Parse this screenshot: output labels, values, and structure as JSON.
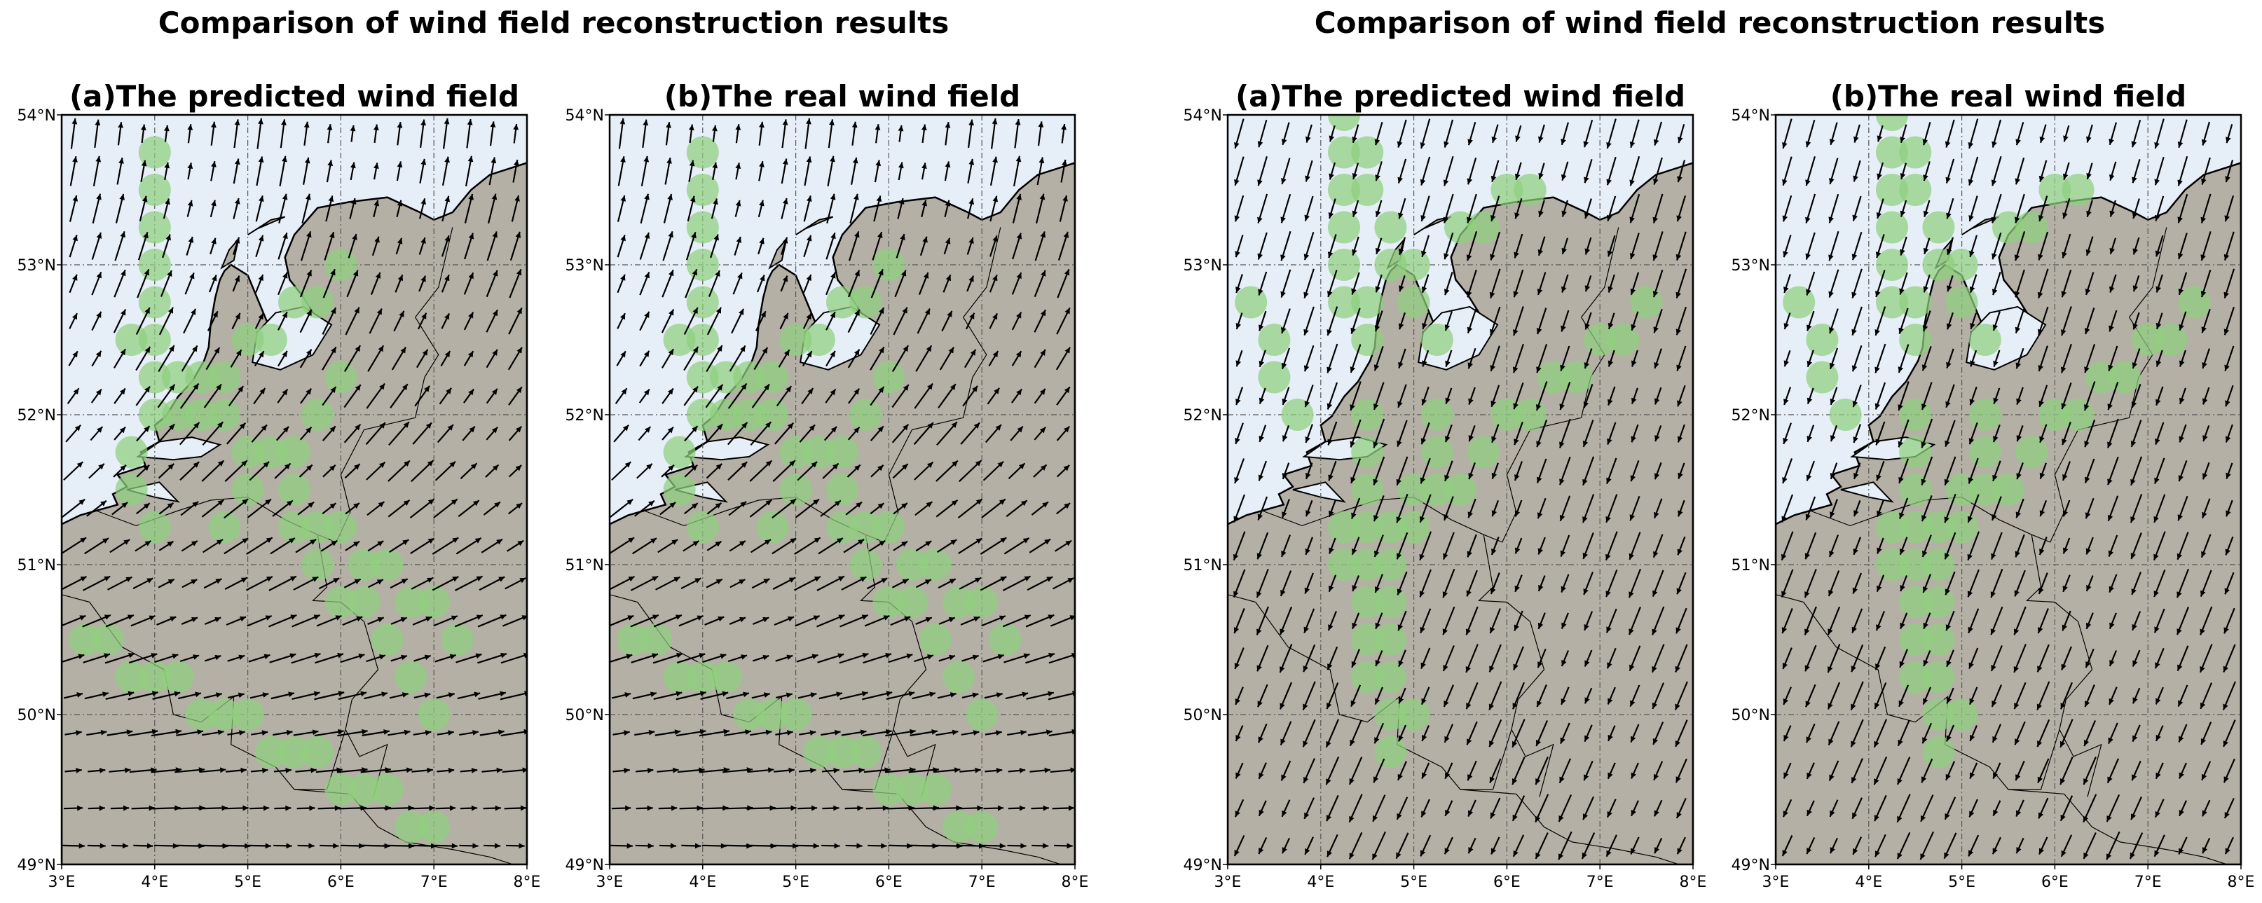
{
  "chart_data": [
    {
      "type": "quiver-map",
      "suptitle": "Comparison of wind field reconstruction results",
      "title": "(a)The predicted wind field",
      "xlim": [
        3,
        8
      ],
      "ylim": [
        49,
        54
      ],
      "xticks": [
        3,
        4,
        5,
        6,
        7,
        8
      ],
      "yticks": [
        49,
        50,
        51,
        52,
        53,
        54
      ],
      "xtick_labels": [
        "3°E",
        "4°E",
        "5°E",
        "6°E",
        "7°E",
        "8°E"
      ],
      "ytick_labels": [
        "49°N",
        "50°N",
        "51°N",
        "52°N",
        "53°N",
        "54°N"
      ],
      "wind": {
        "dir_north": [
          0.1,
          1.0
        ],
        "dir_south": [
          1.0,
          -0.05
        ],
        "grid_step_deg": 0.25
      },
      "station_markers": [
        [
          4,
          53.75
        ],
        [
          4,
          53.5
        ],
        [
          4,
          53.25
        ],
        [
          4,
          53.0
        ],
        [
          4,
          52.75
        ],
        [
          3.75,
          52.5
        ],
        [
          4,
          52.5
        ],
        [
          4,
          52.25
        ],
        [
          4.25,
          52.25
        ],
        [
          4.5,
          52.25
        ],
        [
          4.75,
          52.25
        ],
        [
          4,
          52.0
        ],
        [
          4.25,
          52.0
        ],
        [
          4.5,
          52.0
        ],
        [
          4.75,
          52.0
        ],
        [
          6,
          53.0
        ],
        [
          5.5,
          52.75
        ],
        [
          5.75,
          52.75
        ],
        [
          5,
          52.5
        ],
        [
          5.25,
          52.5
        ],
        [
          6,
          52.25
        ],
        [
          5.75,
          52.0
        ],
        [
          3.75,
          51.75
        ],
        [
          5,
          51.75
        ],
        [
          5.25,
          51.75
        ],
        [
          5.5,
          51.75
        ],
        [
          3.75,
          51.5
        ],
        [
          5,
          51.5
        ],
        [
          5.5,
          51.5
        ],
        [
          4,
          51.25
        ],
        [
          4.75,
          51.25
        ],
        [
          5.5,
          51.25
        ],
        [
          5.75,
          51.25
        ],
        [
          6,
          51.25
        ],
        [
          5.75,
          51.0
        ],
        [
          6.25,
          51.0
        ],
        [
          6.5,
          51.0
        ],
        [
          6,
          50.75
        ],
        [
          6.25,
          50.75
        ],
        [
          6.75,
          50.75
        ],
        [
          7,
          50.75
        ],
        [
          6.5,
          50.5
        ],
        [
          7.25,
          50.5
        ],
        [
          3.25,
          50.5
        ],
        [
          3.5,
          50.5
        ],
        [
          3.75,
          50.25
        ],
        [
          4,
          50.25
        ],
        [
          4.25,
          50.25
        ],
        [
          6.75,
          50.25
        ],
        [
          4.5,
          50.0
        ],
        [
          4.75,
          50.0
        ],
        [
          5,
          50.0
        ],
        [
          7,
          50.0
        ],
        [
          5.25,
          49.75
        ],
        [
          5.5,
          49.75
        ],
        [
          5.75,
          49.75
        ],
        [
          6,
          49.5
        ],
        [
          6.25,
          49.5
        ],
        [
          6.5,
          49.5
        ],
        [
          6.75,
          49.25
        ],
        [
          7,
          49.25
        ]
      ]
    },
    {
      "type": "quiver-map",
      "title": "(b)The real wind field",
      "xlim": [
        3,
        8
      ],
      "ylim": [
        49,
        54
      ],
      "xticks": [
        3,
        4,
        5,
        6,
        7,
        8
      ],
      "yticks": [
        49,
        50,
        51,
        52,
        53,
        54
      ],
      "xtick_labels": [
        "3°E",
        "4°E",
        "5°E",
        "6°E",
        "7°E",
        "8°E"
      ],
      "ytick_labels": [
        "49°N",
        "50°N",
        "51°N",
        "52°N",
        "53°N",
        "54°N"
      ],
      "wind": {
        "dir_north": [
          0.1,
          1.0
        ],
        "dir_south": [
          1.0,
          -0.05
        ],
        "grid_step_deg": 0.25
      },
      "station_markers": [
        [
          4,
          53.75
        ],
        [
          4,
          53.5
        ],
        [
          4,
          53.25
        ],
        [
          4,
          53.0
        ],
        [
          4,
          52.75
        ],
        [
          3.75,
          52.5
        ],
        [
          4,
          52.5
        ],
        [
          4,
          52.25
        ],
        [
          4.25,
          52.25
        ],
        [
          4.5,
          52.25
        ],
        [
          4.75,
          52.25
        ],
        [
          4,
          52.0
        ],
        [
          4.25,
          52.0
        ],
        [
          4.5,
          52.0
        ],
        [
          4.75,
          52.0
        ],
        [
          6,
          53.0
        ],
        [
          5.5,
          52.75
        ],
        [
          5.75,
          52.75
        ],
        [
          5,
          52.5
        ],
        [
          5.25,
          52.5
        ],
        [
          6,
          52.25
        ],
        [
          5.75,
          52.0
        ],
        [
          3.75,
          51.75
        ],
        [
          5,
          51.75
        ],
        [
          5.25,
          51.75
        ],
        [
          5.5,
          51.75
        ],
        [
          3.75,
          51.5
        ],
        [
          5,
          51.5
        ],
        [
          5.5,
          51.5
        ],
        [
          4,
          51.25
        ],
        [
          4.75,
          51.25
        ],
        [
          5.5,
          51.25
        ],
        [
          5.75,
          51.25
        ],
        [
          6,
          51.25
        ],
        [
          5.75,
          51.0
        ],
        [
          6.25,
          51.0
        ],
        [
          6.5,
          51.0
        ],
        [
          6,
          50.75
        ],
        [
          6.25,
          50.75
        ],
        [
          6.75,
          50.75
        ],
        [
          7,
          50.75
        ],
        [
          6.5,
          50.5
        ],
        [
          7.25,
          50.5
        ],
        [
          3.25,
          50.5
        ],
        [
          3.5,
          50.5
        ],
        [
          3.75,
          50.25
        ],
        [
          4,
          50.25
        ],
        [
          4.25,
          50.25
        ],
        [
          6.75,
          50.25
        ],
        [
          4.5,
          50.0
        ],
        [
          4.75,
          50.0
        ],
        [
          5,
          50.0
        ],
        [
          7,
          50.0
        ],
        [
          5.25,
          49.75
        ],
        [
          5.5,
          49.75
        ],
        [
          5.75,
          49.75
        ],
        [
          6,
          49.5
        ],
        [
          6.25,
          49.5
        ],
        [
          6.5,
          49.5
        ],
        [
          6.75,
          49.25
        ],
        [
          7,
          49.25
        ]
      ]
    },
    {
      "type": "quiver-map",
      "suptitle": "Comparison of wind field reconstruction results",
      "title": "(a)The predicted wind field",
      "xlim": [
        3,
        8
      ],
      "ylim": [
        49,
        54
      ],
      "xticks": [
        3,
        4,
        5,
        6,
        7,
        8
      ],
      "yticks": [
        49,
        50,
        51,
        52,
        53,
        54
      ],
      "xtick_labels": [
        "3°E",
        "4°E",
        "5°E",
        "6°E",
        "7°E",
        "8°E"
      ],
      "ytick_labels": [
        "49°N",
        "50°N",
        "51°N",
        "52°N",
        "53°N",
        "54°N"
      ],
      "wind": {
        "dir_north": [
          -0.28,
          -1.0
        ],
        "dir_south": [
          -0.42,
          -0.9
        ],
        "grid_step_deg": 0.25
      },
      "station_markers": [
        [
          4.25,
          54.0
        ],
        [
          4.25,
          53.75
        ],
        [
          4.5,
          53.75
        ],
        [
          4.25,
          53.5
        ],
        [
          4.5,
          53.5
        ],
        [
          4.25,
          53.25
        ],
        [
          4.75,
          53.25
        ],
        [
          4.25,
          53.0
        ],
        [
          4.75,
          53.0
        ],
        [
          5,
          53.0
        ],
        [
          5.5,
          53.25
        ],
        [
          5.75,
          53.25
        ],
        [
          6,
          53.5
        ],
        [
          6.25,
          53.5
        ],
        [
          3.25,
          52.75
        ],
        [
          4.25,
          52.75
        ],
        [
          4.5,
          52.75
        ],
        [
          5,
          52.75
        ],
        [
          7.5,
          52.75
        ],
        [
          3.5,
          52.5
        ],
        [
          4.5,
          52.5
        ],
        [
          5.25,
          52.5
        ],
        [
          7,
          52.5
        ],
        [
          7.25,
          52.5
        ],
        [
          3.5,
          52.25
        ],
        [
          6.5,
          52.25
        ],
        [
          6.75,
          52.25
        ],
        [
          3.75,
          52.0
        ],
        [
          4.5,
          52.0
        ],
        [
          5.25,
          52.0
        ],
        [
          6,
          52.0
        ],
        [
          6.25,
          52.0
        ],
        [
          4.5,
          51.75
        ],
        [
          5.25,
          51.75
        ],
        [
          5.75,
          51.75
        ],
        [
          4.5,
          51.5
        ],
        [
          5,
          51.5
        ],
        [
          5.25,
          51.5
        ],
        [
          5.5,
          51.5
        ],
        [
          4.25,
          51.25
        ],
        [
          4.5,
          51.25
        ],
        [
          4.75,
          51.25
        ],
        [
          5,
          51.25
        ],
        [
          4.25,
          51.0
        ],
        [
          4.5,
          51.0
        ],
        [
          4.75,
          51.0
        ],
        [
          4.5,
          50.75
        ],
        [
          4.75,
          50.75
        ],
        [
          4.5,
          50.5
        ],
        [
          4.75,
          50.5
        ],
        [
          4.5,
          50.25
        ],
        [
          4.75,
          50.25
        ],
        [
          4.75,
          50.0
        ],
        [
          5,
          50.0
        ],
        [
          4.75,
          49.75
        ]
      ]
    },
    {
      "type": "quiver-map",
      "title": "(b)The real wind field",
      "xlim": [
        3,
        8
      ],
      "ylim": [
        49,
        54
      ],
      "xticks": [
        3,
        4,
        5,
        6,
        7,
        8
      ],
      "yticks": [
        49,
        50,
        51,
        52,
        53,
        54
      ],
      "xtick_labels": [
        "3°E",
        "4°E",
        "5°E",
        "6°E",
        "7°E",
        "8°E"
      ],
      "ytick_labels": [
        "49°N",
        "50°N",
        "51°N",
        "52°N",
        "53°N",
        "54°N"
      ],
      "wind": {
        "dir_north": [
          -0.28,
          -1.0
        ],
        "dir_south": [
          -0.42,
          -0.9
        ],
        "grid_step_deg": 0.25
      },
      "station_markers": [
        [
          4.25,
          54.0
        ],
        [
          4.25,
          53.75
        ],
        [
          4.5,
          53.75
        ],
        [
          4.25,
          53.5
        ],
        [
          4.5,
          53.5
        ],
        [
          4.25,
          53.25
        ],
        [
          4.75,
          53.25
        ],
        [
          4.25,
          53.0
        ],
        [
          4.75,
          53.0
        ],
        [
          5,
          53.0
        ],
        [
          5.5,
          53.25
        ],
        [
          5.75,
          53.25
        ],
        [
          6,
          53.5
        ],
        [
          6.25,
          53.5
        ],
        [
          3.25,
          52.75
        ],
        [
          4.25,
          52.75
        ],
        [
          4.5,
          52.75
        ],
        [
          5,
          52.75
        ],
        [
          7.5,
          52.75
        ],
        [
          3.5,
          52.5
        ],
        [
          4.5,
          52.5
        ],
        [
          5.25,
          52.5
        ],
        [
          7,
          52.5
        ],
        [
          7.25,
          52.5
        ],
        [
          3.5,
          52.25
        ],
        [
          6.5,
          52.25
        ],
        [
          6.75,
          52.25
        ],
        [
          3.75,
          52.0
        ],
        [
          4.5,
          52.0
        ],
        [
          5.25,
          52.0
        ],
        [
          6,
          52.0
        ],
        [
          6.25,
          52.0
        ],
        [
          4.5,
          51.75
        ],
        [
          5.25,
          51.75
        ],
        [
          5.75,
          51.75
        ],
        [
          4.5,
          51.5
        ],
        [
          5,
          51.5
        ],
        [
          5.25,
          51.5
        ],
        [
          5.5,
          51.5
        ],
        [
          4.25,
          51.25
        ],
        [
          4.5,
          51.25
        ],
        [
          4.75,
          51.25
        ],
        [
          5,
          51.25
        ],
        [
          4.25,
          51.0
        ],
        [
          4.5,
          51.0
        ],
        [
          4.75,
          51.0
        ],
        [
          4.5,
          50.75
        ],
        [
          4.75,
          50.75
        ],
        [
          4.5,
          50.5
        ],
        [
          4.75,
          50.5
        ],
        [
          4.5,
          50.25
        ],
        [
          4.75,
          50.25
        ],
        [
          4.75,
          50.0
        ],
        [
          5,
          50.0
        ],
        [
          4.75,
          49.75
        ]
      ]
    }
  ],
  "colors": {
    "sea": "#e6eef8",
    "land": "#b4b0a5",
    "marker": "#8fd07e",
    "arrow": "#000000",
    "grid": "#555555"
  }
}
